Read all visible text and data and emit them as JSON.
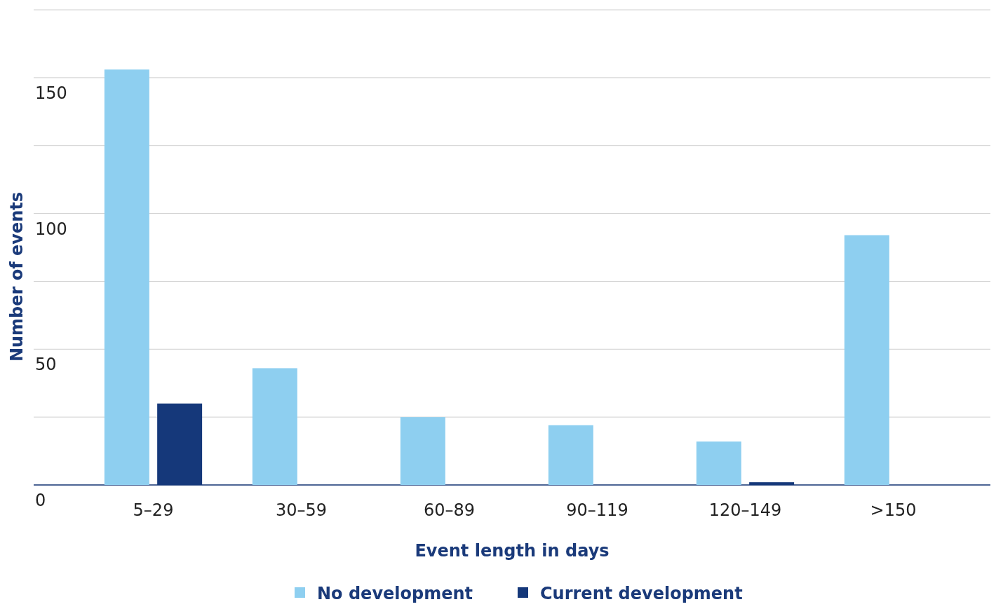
{
  "chart_data": {
    "type": "bar",
    "xlabel": "Event length in days",
    "ylabel": "Number of events",
    "categories": [
      "5–29",
      "30–59",
      "60–89",
      "90–119",
      "120–149",
      ">150"
    ],
    "series": [
      {
        "name": "No development",
        "color": "#8ecff0",
        "values": [
          153,
          43,
          25,
          22,
          16,
          92
        ]
      },
      {
        "name": "Current development",
        "color": "#15387a",
        "values": [
          30,
          0,
          0,
          0,
          1,
          0
        ]
      }
    ],
    "ylim": [
      0,
      175
    ],
    "yticks": [
      0,
      {
        "value": 25,
        "label": null
      },
      50,
      {
        "value": 75,
        "label": null
      },
      100,
      {
        "value": 125,
        "label": null
      },
      150,
      {
        "value": 175,
        "label": null
      }
    ],
    "grid": "y",
    "legend": "bottom"
  }
}
